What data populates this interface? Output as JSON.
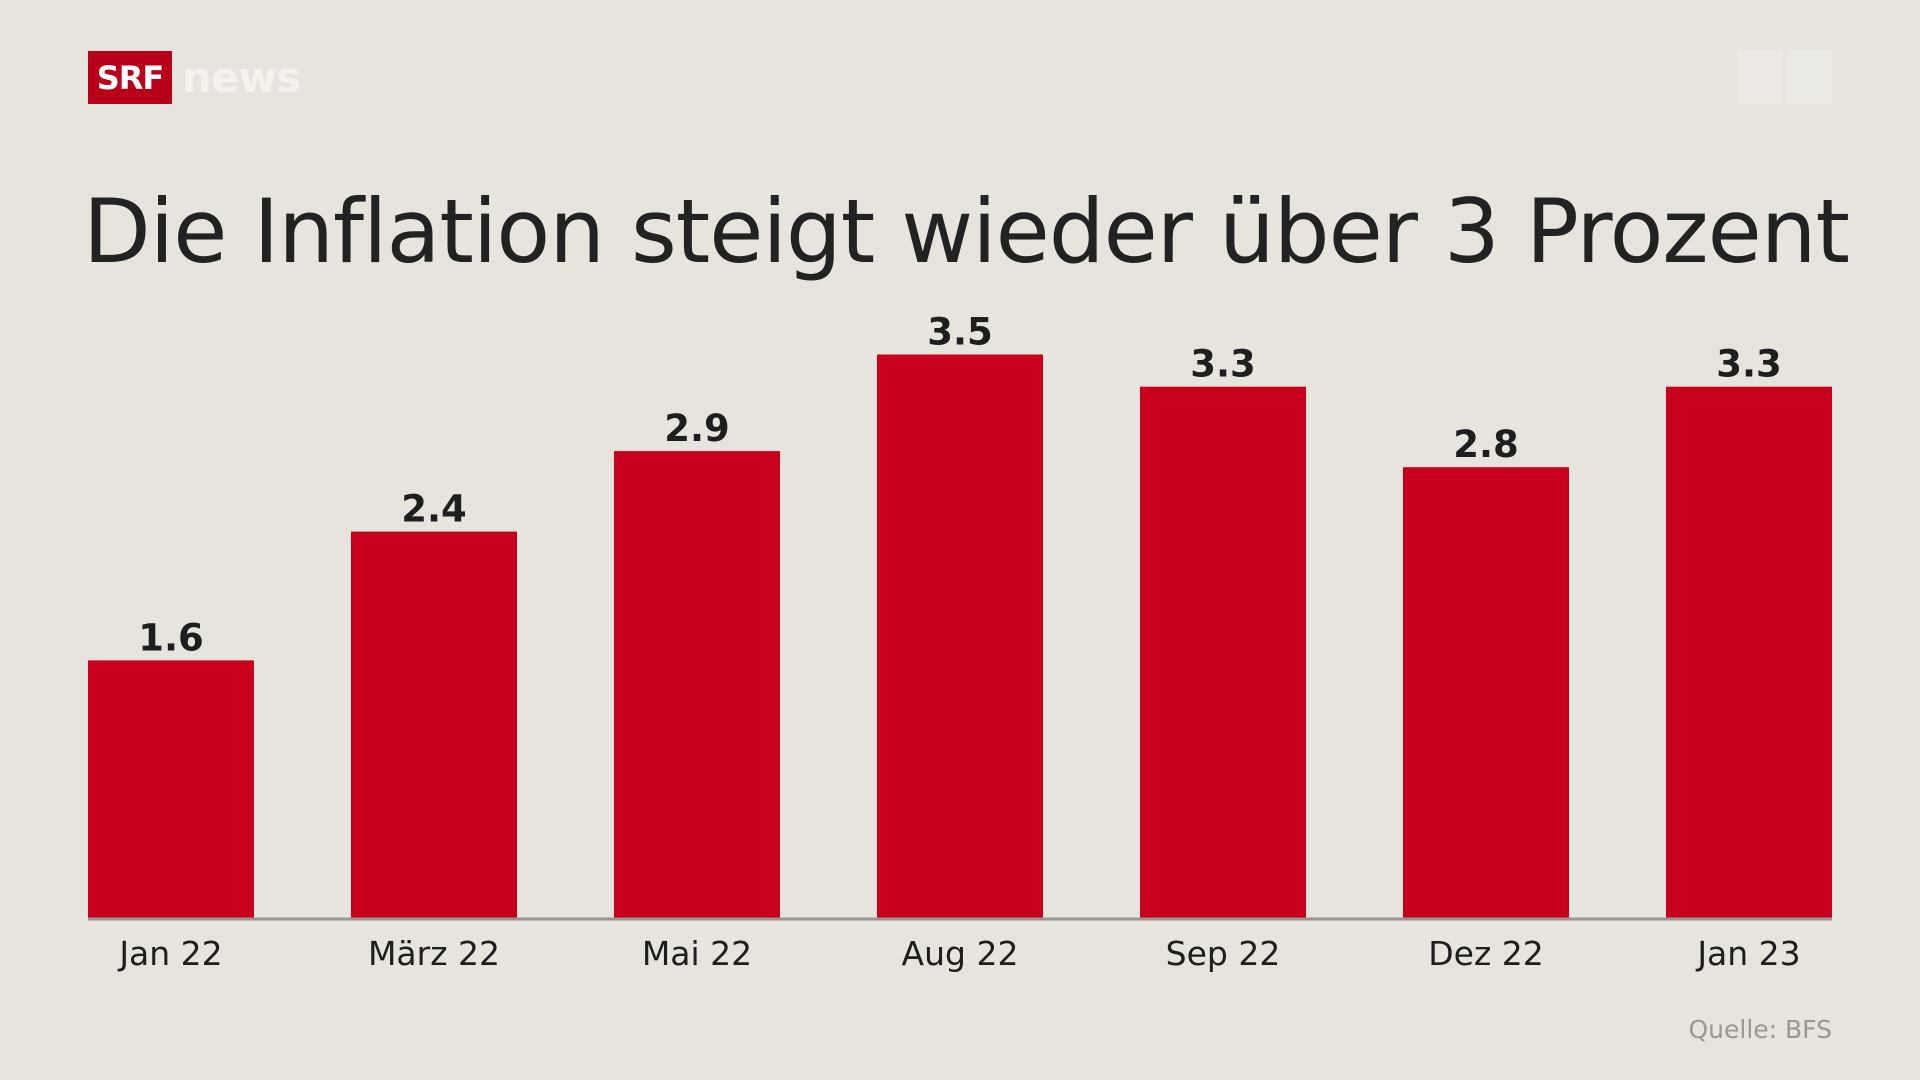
{
  "logo": {
    "brand": "SRF",
    "product": "news"
  },
  "chart_data": {
    "type": "bar",
    "title": "Die Inflation steigt wieder über 3 Prozent",
    "categories": [
      "Jan 22",
      "März 22",
      "Mai 22",
      "Aug 22",
      "Sep 22",
      "Dez 22",
      "Jan 23"
    ],
    "values": [
      1.6,
      2.4,
      2.9,
      3.5,
      3.3,
      2.8,
      3.3
    ],
    "value_labels": [
      "1.6",
      "2.4",
      "2.9",
      "3.5",
      "3.3",
      "2.8",
      "3.3"
    ],
    "xlabel": "",
    "ylabel": "",
    "ylim": [
      0,
      3.5
    ],
    "grid": false,
    "bar_color": "#c8001e",
    "source": "Quelle: BFS"
  }
}
